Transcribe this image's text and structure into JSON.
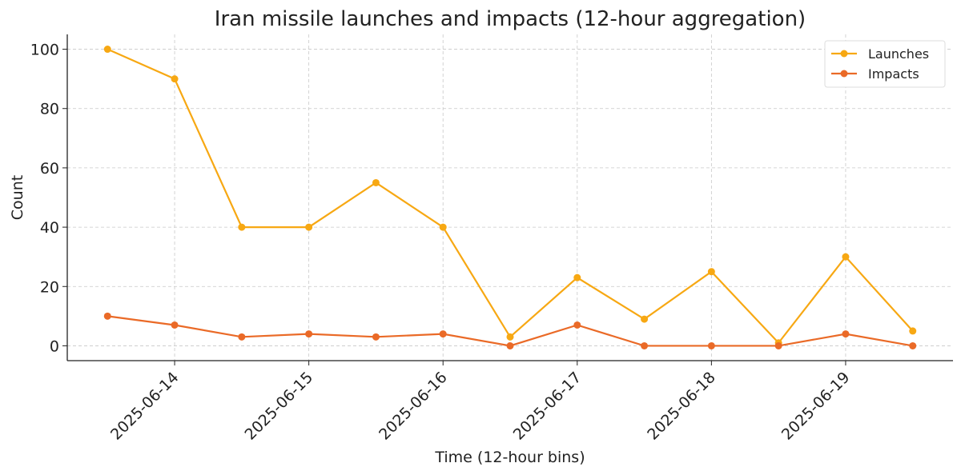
{
  "chart_data": {
    "type": "line",
    "title": "Iran missile launches and impacts (12-hour aggregation)",
    "x_label": "Time (12-hour bins)",
    "y_label": "Count",
    "x": [
      "2025-06-13T12:00Z",
      "2025-06-14T00:00Z",
      "2025-06-14T12:00Z",
      "2025-06-15T00:00Z",
      "2025-06-15T12:00Z",
      "2025-06-16T00:00Z",
      "2025-06-16T12:00Z",
      "2025-06-17T00:00Z",
      "2025-06-17T12:00Z",
      "2025-06-18T00:00Z",
      "2025-06-18T12:00Z",
      "2025-06-19T00:00Z",
      "2025-06-19T12:00Z"
    ],
    "series": [
      {
        "name": "Launches",
        "color": "#f7a813",
        "values": [
          100,
          90,
          40,
          40,
          55,
          40,
          3,
          23,
          9,
          25,
          1,
          30,
          5
        ]
      },
      {
        "name": "Impacts",
        "color": "#ea6a27",
        "values": [
          10,
          7,
          3,
          4,
          3,
          4,
          0,
          7,
          0,
          0,
          0,
          4,
          0
        ]
      }
    ],
    "xlim": [
      "2025-06-13T04:48Z",
      "2025-06-19T19:12Z"
    ],
    "xticks": [
      "2025-06-14",
      "2025-06-15",
      "2025-06-16",
      "2025-06-17",
      "2025-06-18",
      "2025-06-19"
    ],
    "ylim": [
      -5,
      105
    ],
    "yticks": [
      0,
      20,
      40,
      60,
      80,
      100
    ],
    "grid": true,
    "legend": "upper right"
  }
}
